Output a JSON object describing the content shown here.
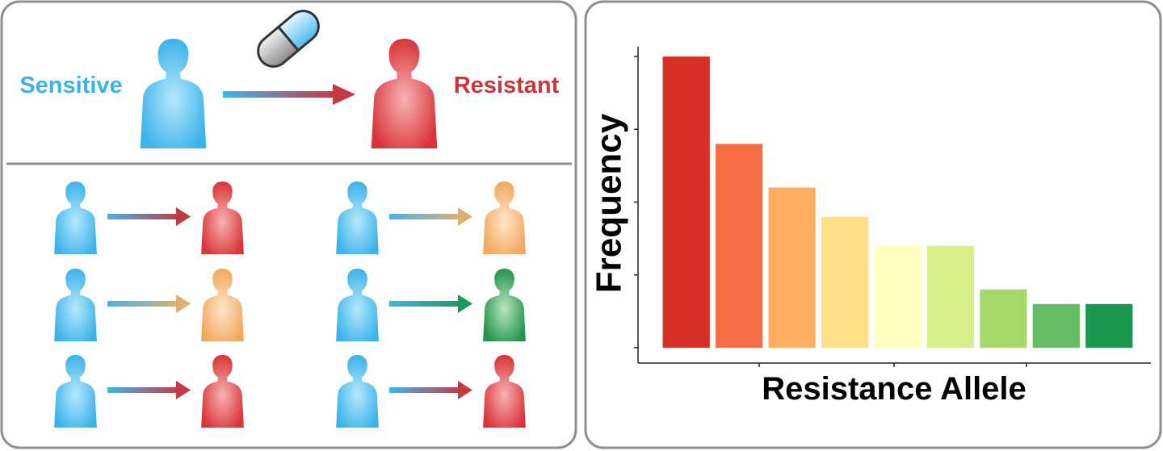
{
  "diagram": {
    "labels": {
      "sensitive": "Sensitive",
      "resistant": "Resistant"
    }
  },
  "chart_data": {
    "type": "bar",
    "ylabel": "Frequency",
    "xlabel": "Resistance Allele",
    "categories": [
      null,
      null,
      null,
      null,
      null,
      null,
      null,
      null,
      null
    ],
    "values": [
      4.0,
      2.8,
      2.2,
      1.8,
      1.4,
      1.4,
      0.8,
      0.6,
      0.6
    ],
    "colors": [
      "#d73027",
      "#f46d43",
      "#fdae61",
      "#fee08b",
      "#ffffbf",
      "#d9ef8b",
      "#a6d96a",
      "#66bd63",
      "#1a9850"
    ],
    "ylim": [
      -0.2,
      4.2
    ],
    "yticks": [
      0,
      1,
      2,
      3,
      4
    ]
  }
}
